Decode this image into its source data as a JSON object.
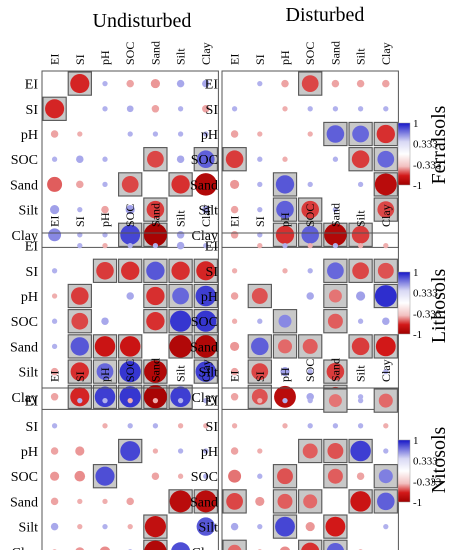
{
  "figure": {
    "column_headers": [
      "Undisturbed",
      "Disturbed"
    ],
    "row_labels": [
      "Ferralsols",
      "Lithosols",
      "Nitosols"
    ]
  },
  "chart_data": {
    "type": "heatmap",
    "variables": [
      "EI",
      "SI",
      "pH",
      "SOC",
      "Sand",
      "Silt",
      "Clay"
    ],
    "color_scale": {
      "ticks": [
        "1",
        "0.333",
        "-0.333",
        "-1"
      ],
      "positive_color": "#1515c8",
      "negative_color": "#d21818",
      "strong_negative_color": "#a00000",
      "highlight_fill": "#c8c8c8"
    },
    "panels": [
      {
        "soil": "Ferralsols",
        "condition": "Undisturbed",
        "matrix": [
          [
            1,
            -0.65,
            0.05,
            -0.1,
            -0.15,
            0.1,
            0.1
          ],
          [
            -0.65,
            1,
            0.05,
            0.08,
            -0.1,
            0.05,
            -0.1
          ],
          [
            -0.1,
            -0.05,
            1,
            0.05,
            0.05,
            0.05,
            0.05
          ],
          [
            0.05,
            0.1,
            0.05,
            1,
            -0.5,
            0.1,
            0.55
          ],
          [
            -0.4,
            -0.1,
            0.05,
            -0.5,
            1,
            -0.6,
            -0.9
          ],
          [
            0.15,
            0.05,
            -0.1,
            0.15,
            -0.55,
            1,
            0.1
          ],
          [
            0.3,
            0.05,
            0.05,
            0.7,
            -0.95,
            0.1,
            1
          ]
        ],
        "significant": [
          [
            0,
            1
          ],
          [
            1,
            0
          ],
          [
            3,
            4
          ],
          [
            3,
            6
          ],
          [
            4,
            3
          ],
          [
            4,
            5
          ],
          [
            5,
            4
          ],
          [
            6,
            3
          ],
          [
            6,
            4
          ]
        ]
      },
      {
        "soil": "Ferralsols",
        "condition": "Disturbed",
        "matrix": [
          [
            1,
            0.05,
            -0.1,
            -0.5,
            -0.1,
            -0.1,
            -0.1
          ],
          [
            0.05,
            1,
            -0.05,
            0.05,
            0.05,
            0.05,
            0.05
          ],
          [
            -0.1,
            -0.05,
            1,
            -0.05,
            0.55,
            0.5,
            -0.6
          ],
          [
            -0.55,
            0.05,
            -0.05,
            1,
            0.05,
            -0.55,
            0.5
          ],
          [
            -0.15,
            0.05,
            0.6,
            0.05,
            1,
            0.05,
            -0.85
          ],
          [
            -0.1,
            0.05,
            0.55,
            -0.55,
            0.05,
            1,
            -0.5
          ],
          [
            -0.1,
            0.05,
            -0.6,
            0.55,
            -0.9,
            -0.55,
            1
          ]
        ],
        "significant": [
          [
            0,
            3
          ],
          [
            2,
            4
          ],
          [
            2,
            5
          ],
          [
            2,
            6
          ],
          [
            3,
            0
          ],
          [
            3,
            5
          ],
          [
            3,
            6
          ],
          [
            4,
            2
          ],
          [
            4,
            6
          ],
          [
            5,
            2
          ],
          [
            5,
            3
          ],
          [
            5,
            6
          ],
          [
            6,
            2
          ],
          [
            6,
            3
          ],
          [
            6,
            4
          ],
          [
            6,
            5
          ]
        ]
      },
      {
        "soil": "Lithosols",
        "condition": "Undisturbed",
        "matrix": [
          [
            1,
            0.05,
            -0.05,
            0.05,
            0.05,
            0.1,
            0.05
          ],
          [
            0.05,
            1,
            -0.55,
            -0.6,
            0.6,
            -0.6,
            -0.65
          ],
          [
            -0.05,
            -0.55,
            1,
            0.1,
            -0.6,
            0.5,
            0.75
          ],
          [
            0.05,
            -0.5,
            0.1,
            1,
            -0.6,
            0.8,
            0.8
          ],
          [
            0.05,
            0.6,
            -0.75,
            -0.75,
            1,
            -0.9,
            -0.9
          ],
          [
            -0.1,
            -0.6,
            0.5,
            0.8,
            -0.9,
            1,
            0.75
          ],
          [
            -0.1,
            -0.65,
            0.75,
            0.8,
            -0.95,
            0.75,
            1
          ]
        ],
        "significant": [
          [
            1,
            2
          ],
          [
            1,
            3
          ],
          [
            1,
            4
          ],
          [
            1,
            5
          ],
          [
            1,
            6
          ],
          [
            2,
            1
          ],
          [
            2,
            4
          ],
          [
            2,
            5
          ],
          [
            2,
            6
          ],
          [
            3,
            1
          ],
          [
            3,
            4
          ],
          [
            3,
            5
          ],
          [
            3,
            6
          ],
          [
            4,
            1
          ],
          [
            4,
            2
          ],
          [
            4,
            3
          ],
          [
            4,
            5
          ],
          [
            4,
            6
          ],
          [
            5,
            1
          ],
          [
            5,
            2
          ],
          [
            5,
            3
          ],
          [
            5,
            4
          ],
          [
            5,
            6
          ],
          [
            6,
            1
          ],
          [
            6,
            2
          ],
          [
            6,
            3
          ],
          [
            6,
            4
          ],
          [
            6,
            5
          ]
        ]
      },
      {
        "soil": "Lithosols",
        "condition": "Disturbed",
        "matrix": [
          [
            1,
            -0.05,
            0.05,
            -0.05,
            0.05,
            -0.05,
            -0.05
          ],
          [
            -0.05,
            1,
            -0.05,
            0.05,
            0.5,
            -0.5,
            -0.45
          ],
          [
            -0.1,
            -0.45,
            1,
            0.1,
            -0.3,
            0.15,
            0.85
          ],
          [
            -0.05,
            0.05,
            0.3,
            1,
            -0.4,
            0.05,
            0.1
          ],
          [
            -0.15,
            0.55,
            -0.35,
            -0.4,
            1,
            -0.55,
            -0.7
          ],
          [
            -0.1,
            -0.5,
            0.15,
            0.05,
            -0.55,
            1,
            0.05
          ],
          [
            -0.1,
            -0.45,
            -0.85,
            0.1,
            -0.7,
            0.05,
            1
          ]
        ],
        "significant": [
          [
            1,
            4
          ],
          [
            1,
            5
          ],
          [
            1,
            6
          ],
          [
            2,
            1
          ],
          [
            2,
            4
          ],
          [
            2,
            6
          ],
          [
            3,
            2
          ],
          [
            3,
            4
          ],
          [
            4,
            1
          ],
          [
            4,
            2
          ],
          [
            4,
            3
          ],
          [
            4,
            5
          ],
          [
            4,
            6
          ],
          [
            5,
            1
          ],
          [
            5,
            4
          ],
          [
            6,
            1
          ],
          [
            6,
            4
          ]
        ]
      },
      {
        "soil": "Nitosols",
        "condition": "Undisturbed",
        "matrix": [
          [
            1,
            0.05,
            0.05,
            -0.05,
            -0.05,
            0.05,
            0.05
          ],
          [
            0.05,
            1,
            -0.05,
            0.05,
            0.05,
            -0.05,
            -0.05
          ],
          [
            -0.1,
            -0.15,
            1,
            0.7,
            -0.05,
            0.05,
            0.05
          ],
          [
            -0.15,
            -0.2,
            0.65,
            1,
            -0.1,
            -0.05,
            0.05
          ],
          [
            -0.1,
            -0.05,
            -0.05,
            -0.1,
            1,
            -0.85,
            -0.85
          ],
          [
            0.1,
            -0.05,
            0.05,
            -0.05,
            -0.8,
            1,
            0.6
          ],
          [
            -0.05,
            -0.15,
            -0.2,
            0.05,
            -0.9,
            0.65,
            1
          ]
        ],
        "significant": [
          [
            2,
            3
          ],
          [
            3,
            2
          ],
          [
            4,
            5
          ],
          [
            4,
            6
          ],
          [
            5,
            4
          ],
          [
            6,
            4
          ]
        ]
      },
      {
        "soil": "Nitosols",
        "condition": "Disturbed",
        "matrix": [
          [
            1,
            -0.05,
            0.05,
            0.05,
            -0.3,
            0.05,
            -0.35
          ],
          [
            -0.05,
            1,
            -0.05,
            0.05,
            0.05,
            0.05,
            -0.05
          ],
          [
            -0.1,
            -0.05,
            1,
            -0.4,
            -0.45,
            0.75,
            0.05
          ],
          [
            -0.3,
            0.05,
            -0.45,
            1,
            -0.4,
            -0.1,
            0.35
          ],
          [
            -0.5,
            -0.15,
            -0.4,
            -0.35,
            1,
            -0.75,
            0.55
          ],
          [
            0.1,
            0.05,
            0.7,
            -0.15,
            -0.7,
            1,
            0.05
          ],
          [
            -0.35,
            -0.05,
            -0.2,
            -0.6,
            0.55,
            -0.05,
            1
          ]
        ],
        "significant": [
          [
            0,
            4
          ],
          [
            0,
            6
          ],
          [
            2,
            3
          ],
          [
            2,
            4
          ],
          [
            2,
            5
          ],
          [
            3,
            2
          ],
          [
            3,
            4
          ],
          [
            3,
            6
          ],
          [
            4,
            0
          ],
          [
            4,
            2
          ],
          [
            4,
            3
          ],
          [
            4,
            5
          ],
          [
            4,
            6
          ],
          [
            5,
            2
          ],
          [
            5,
            4
          ],
          [
            6,
            0
          ],
          [
            6,
            3
          ],
          [
            6,
            4
          ]
        ]
      }
    ]
  }
}
